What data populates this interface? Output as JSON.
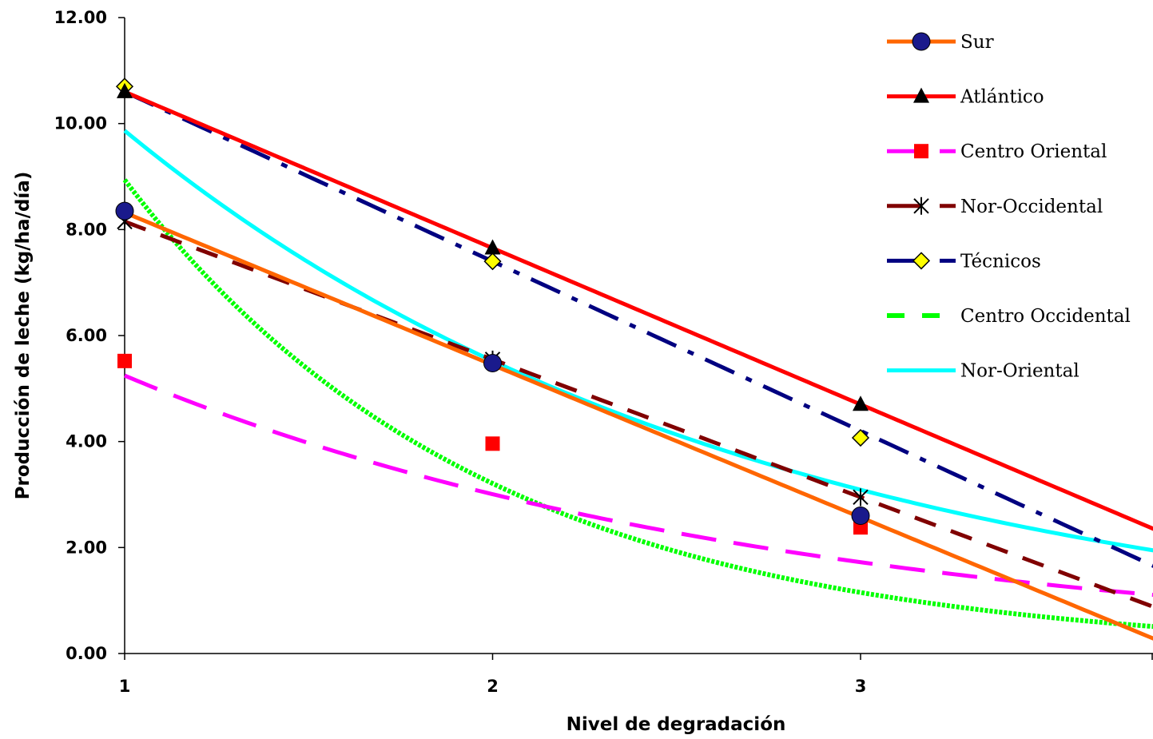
{
  "chart_data": {
    "type": "line",
    "xlabel": "Nivel de degradación",
    "ylabel": "Producción de leche (kg/ha/día)",
    "ylim": [
      0,
      12
    ],
    "xlim": [
      1,
      3.8
    ],
    "x_ticks": [
      1,
      2,
      3
    ],
    "y_ticks": [
      "0.00",
      "2.00",
      "4.00",
      "6.00",
      "8.00",
      "10.00",
      "12.00"
    ],
    "legend_position": "top-right",
    "grid": false,
    "series": [
      {
        "name": "Sur",
        "color": "#ff6600",
        "dash": "solid",
        "marker": "circle",
        "marker_color": "#1a1a8c",
        "points": [
          [
            1,
            8.35
          ],
          [
            2,
            5.48
          ],
          [
            3,
            2.6
          ]
        ],
        "trend": {
          "kind": "linear",
          "a": 11.195,
          "b": -2.875
        }
      },
      {
        "name": "Atlántico",
        "color": "#ff0000",
        "dash": "solid",
        "marker": "triangle",
        "marker_color": "#000000",
        "points": [
          [
            1,
            10.6
          ],
          [
            2,
            7.65
          ],
          [
            3,
            4.7
          ]
        ],
        "trend": {
          "kind": "linear",
          "a": 13.55,
          "b": -2.95
        }
      },
      {
        "name": "Centro Oriental",
        "color": "#ff00ff",
        "dash": "longdash",
        "marker": "square",
        "marker_color": "#ff0000",
        "points": [
          [
            1,
            5.52
          ],
          [
            2,
            3.96
          ],
          [
            3,
            2.38
          ]
        ],
        "trend": {
          "kind": "exp",
          "a": 9.15,
          "b": -0.5565
        }
      },
      {
        "name": "Nor-Occidental",
        "color": "#800000",
        "dash": "dash",
        "marker": "asterisk",
        "marker_color": "#000000",
        "points": [
          [
            1,
            8.15
          ],
          [
            2,
            5.55
          ],
          [
            3,
            2.95
          ]
        ],
        "trend": {
          "kind": "linear",
          "a": 10.75,
          "b": -2.6
        }
      },
      {
        "name": "Técnicos",
        "color": "#000080",
        "dash": "dashdot",
        "marker": "diamond",
        "marker_color": "#ffff00",
        "points": [
          [
            1,
            10.7
          ],
          [
            2,
            7.4
          ],
          [
            3,
            4.07
          ]
        ],
        "trend": {
          "kind": "linear",
          "a": 13.8,
          "b": -3.2
        }
      },
      {
        "name": "Centro Occidental",
        "color": "#00ff00",
        "dash": "shortdash",
        "marker": "none",
        "marker_color": "#00ff00",
        "points": [],
        "trend": {
          "kind": "exp",
          "a": 24.9,
          "b": -1.0245
        }
      },
      {
        "name": "Nor-Oriental",
        "color": "#00ffff",
        "dash": "solid",
        "marker": "none",
        "marker_color": "#00ffff",
        "points": [],
        "trend": {
          "kind": "exp",
          "a": 17.63,
          "b": -0.5805
        }
      }
    ]
  }
}
